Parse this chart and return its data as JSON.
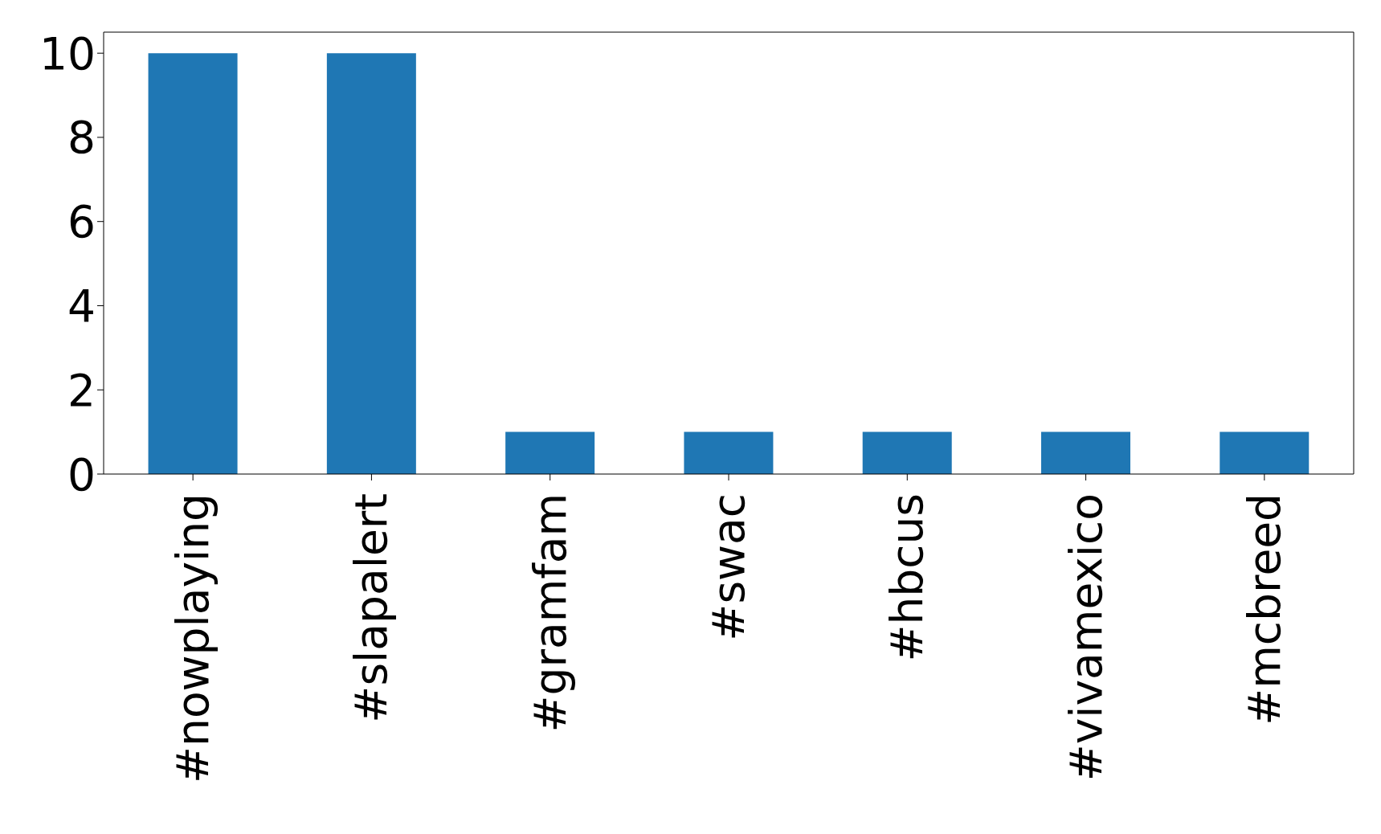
{
  "chart_data": {
    "type": "bar",
    "categories": [
      "#nowplaying",
      "#slapalert",
      "#gramfam",
      "#swac",
      "#hbcus",
      "#vivamexico",
      "#mcbreed"
    ],
    "values": [
      10,
      10,
      1,
      1,
      1,
      1,
      1
    ],
    "color": "#1f77b4",
    "ylim": [
      0,
      10.5
    ],
    "yticks": [
      0,
      2,
      4,
      6,
      8,
      10
    ],
    "grid": false
  }
}
